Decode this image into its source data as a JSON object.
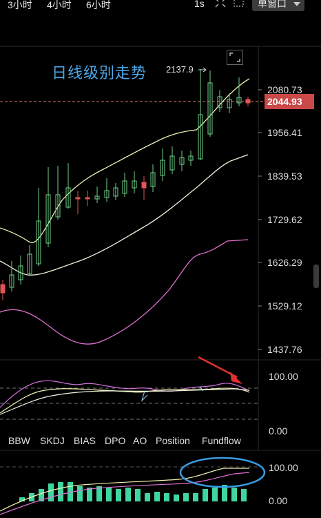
{
  "topbar": {
    "timeframes": [
      "3小时",
      "4小时",
      "6小时"
    ],
    "interval": "1s",
    "window_button": "单窗口"
  },
  "chart": {
    "title": "日线级别走势",
    "high_annotation": "2137.9",
    "current_price": "2044.93",
    "price_axis": [
      "2080.73",
      "1956.41",
      "1839.53",
      "1729.62",
      "1626.29",
      "1529.12",
      "1437.76"
    ],
    "colors": {
      "up": "#6fd08a",
      "down": "#e05555",
      "ma_short": "#f2f0b0",
      "ma_long": "#f0f0d8",
      "ma_pink": "#e070d0",
      "accent_blue": "#4ea7e8"
    }
  },
  "indicator1": {
    "levels": [
      "100.00",
      "0.00"
    ]
  },
  "tabs": [
    "BBW",
    "SKDJ",
    "BIAS",
    "DPO",
    "AO",
    "Position",
    "Fundflow"
  ],
  "indicator2": {
    "levels": [
      "100.00",
      "0.00"
    ]
  }
}
